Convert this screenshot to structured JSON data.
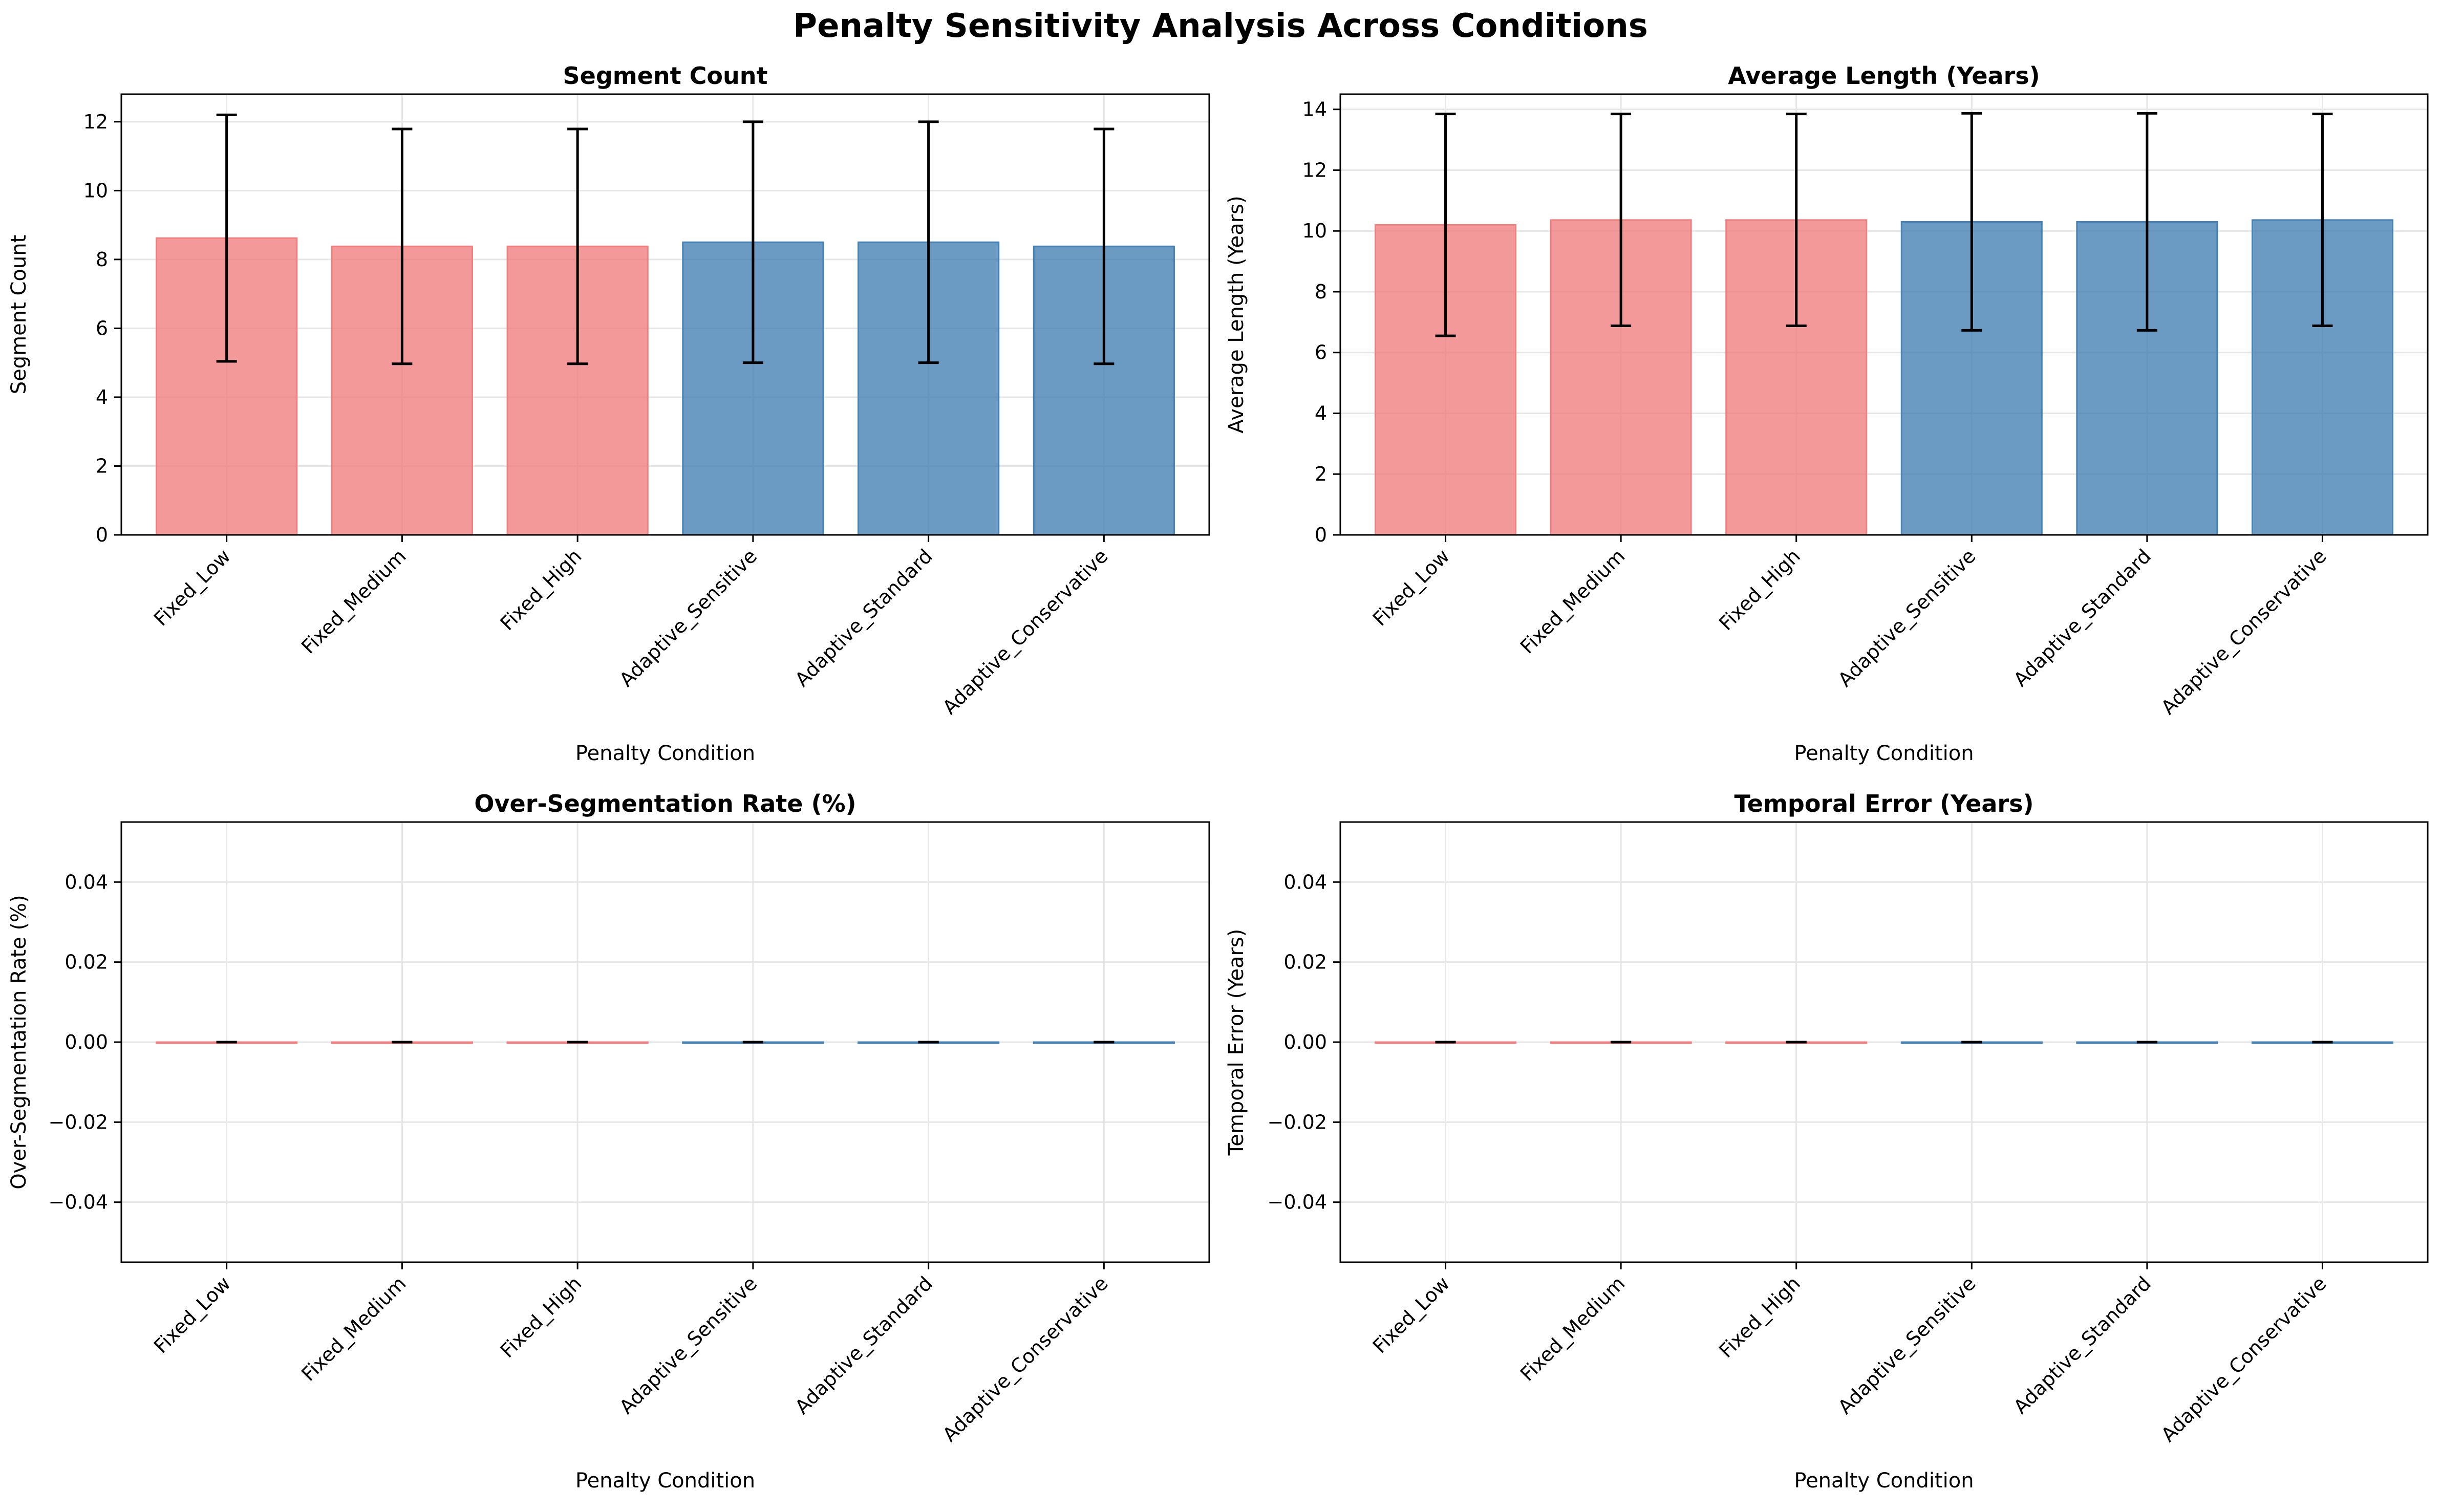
{
  "figure_title": "Penalty Sensitivity Analysis Across Conditions",
  "colors": {
    "fixed": "#F08080",
    "adaptive": "#4682B4",
    "grid": "#e6e6e6",
    "axis": "#000000"
  },
  "chart_data": [
    {
      "type": "bar",
      "title": "Segment Count",
      "xlabel": "Penalty Condition",
      "ylabel": "Segment Count",
      "categories": [
        "Fixed_Low",
        "Fixed_Medium",
        "Fixed_High",
        "Adaptive_Sensitive",
        "Adaptive_Standard",
        "Adaptive_Conservative"
      ],
      "values": [
        8.62,
        8.38,
        8.38,
        8.5,
        8.5,
        8.38
      ],
      "error_low": [
        5.04,
        4.97,
        4.97,
        5.0,
        5.0,
        4.97
      ],
      "error_high": [
        12.2,
        11.79,
        11.79,
        12.0,
        12.0,
        11.79
      ],
      "ylim": [
        0,
        12.8
      ],
      "yticks": [
        0,
        2,
        4,
        6,
        8,
        10,
        12
      ],
      "ytick_labels": [
        "0",
        "2",
        "4",
        "6",
        "8",
        "10",
        "12"
      ],
      "bar_groups": [
        "fixed",
        "fixed",
        "fixed",
        "adaptive",
        "adaptive",
        "adaptive"
      ],
      "grid": true
    },
    {
      "type": "bar",
      "title": "Average Length (Years)",
      "xlabel": "Penalty Condition",
      "ylabel": "Average Length (Years)",
      "categories": [
        "Fixed_Low",
        "Fixed_Medium",
        "Fixed_High",
        "Adaptive_Sensitive",
        "Adaptive_Standard",
        "Adaptive_Conservative"
      ],
      "values": [
        10.2,
        10.36,
        10.36,
        10.3,
        10.3,
        10.36
      ],
      "error_low": [
        6.55,
        6.88,
        6.88,
        6.73,
        6.73,
        6.88
      ],
      "error_high": [
        13.85,
        13.85,
        13.85,
        13.87,
        13.87,
        13.85
      ],
      "ylim": [
        0,
        14.5
      ],
      "yticks": [
        0,
        2,
        4,
        6,
        8,
        10,
        12,
        14
      ],
      "ytick_labels": [
        "0",
        "2",
        "4",
        "6",
        "8",
        "10",
        "12",
        "14"
      ],
      "bar_groups": [
        "fixed",
        "fixed",
        "fixed",
        "adaptive",
        "adaptive",
        "adaptive"
      ],
      "grid": true
    },
    {
      "type": "bar",
      "title": "Over-Segmentation Rate (%)",
      "xlabel": "Penalty Condition",
      "ylabel": "Over-Segmentation Rate (%)",
      "categories": [
        "Fixed_Low",
        "Fixed_Medium",
        "Fixed_High",
        "Adaptive_Sensitive",
        "Adaptive_Standard",
        "Adaptive_Conservative"
      ],
      "values": [
        0,
        0,
        0,
        0,
        0,
        0
      ],
      "error_low": [
        0,
        0,
        0,
        0,
        0,
        0
      ],
      "error_high": [
        0,
        0,
        0,
        0,
        0,
        0
      ],
      "ylim": [
        -0.055,
        0.055
      ],
      "yticks": [
        -0.04,
        -0.02,
        0,
        0.02,
        0.04
      ],
      "ytick_labels": [
        "−0.04",
        "−0.02",
        "0.00",
        "0.02",
        "0.04"
      ],
      "bar_groups": [
        "fixed",
        "fixed",
        "fixed",
        "adaptive",
        "adaptive",
        "adaptive"
      ],
      "grid": true
    },
    {
      "type": "bar",
      "title": "Temporal Error (Years)",
      "xlabel": "Penalty Condition",
      "ylabel": "Temporal Error (Years)",
      "categories": [
        "Fixed_Low",
        "Fixed_Medium",
        "Fixed_High",
        "Adaptive_Sensitive",
        "Adaptive_Standard",
        "Adaptive_Conservative"
      ],
      "values": [
        0,
        0,
        0,
        0,
        0,
        0
      ],
      "error_low": [
        0,
        0,
        0,
        0,
        0,
        0
      ],
      "error_high": [
        0,
        0,
        0,
        0,
        0,
        0
      ],
      "ylim": [
        -0.055,
        0.055
      ],
      "yticks": [
        -0.04,
        -0.02,
        0,
        0.02,
        0.04
      ],
      "ytick_labels": [
        "−0.04",
        "−0.02",
        "0.00",
        "0.02",
        "0.04"
      ],
      "bar_groups": [
        "fixed",
        "fixed",
        "fixed",
        "adaptive",
        "adaptive",
        "adaptive"
      ],
      "grid": true
    }
  ]
}
